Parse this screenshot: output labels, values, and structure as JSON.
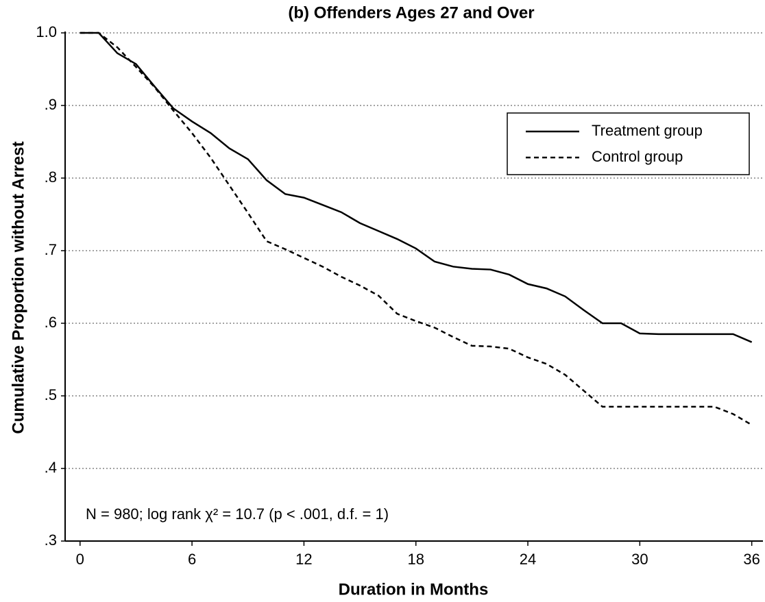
{
  "chart_data": {
    "type": "line",
    "title": "(b) Offenders Ages 27 and Over",
    "xlabel": "Duration in Months",
    "ylabel": "Cumulative Proportion without Arrest",
    "annotation": "N = 980; log rank χ² = 10.7 (p < .001, d.f. = 1)",
    "x": [
      0,
      1,
      2,
      3,
      4,
      5,
      6,
      7,
      8,
      9,
      10,
      11,
      12,
      13,
      14,
      15,
      16,
      17,
      18,
      19,
      20,
      21,
      22,
      23,
      24,
      25,
      26,
      27,
      28,
      29,
      30,
      31,
      32,
      33,
      34,
      35,
      36
    ],
    "series": [
      {
        "name": "Treatment group",
        "color": "#000000",
        "dash": false,
        "values": [
          1.0,
          1.0,
          0.972,
          0.957,
          0.926,
          0.896,
          0.878,
          0.862,
          0.841,
          0.826,
          0.797,
          0.778,
          0.773,
          0.763,
          0.753,
          0.738,
          0.727,
          0.716,
          0.703,
          0.685,
          0.678,
          0.675,
          0.674,
          0.667,
          0.654,
          0.648,
          0.637,
          0.618,
          0.6,
          0.6,
          0.586,
          0.585,
          0.585,
          0.585,
          0.585,
          0.585,
          0.574
        ]
      },
      {
        "name": "Control group",
        "color": "#000000",
        "dash": true,
        "values": [
          1.0,
          1.0,
          0.98,
          0.953,
          0.925,
          0.893,
          0.862,
          0.828,
          0.79,
          0.752,
          0.713,
          0.702,
          0.69,
          0.678,
          0.664,
          0.652,
          0.638,
          0.613,
          0.603,
          0.594,
          0.581,
          0.569,
          0.568,
          0.565,
          0.553,
          0.544,
          0.529,
          0.507,
          0.485,
          0.485,
          0.485,
          0.485,
          0.485,
          0.485,
          0.485,
          0.475,
          0.46
        ]
      }
    ],
    "xlim": [
      -0.8,
      36.6
    ],
    "xticks": [
      0,
      6,
      12,
      18,
      24,
      30,
      36
    ],
    "ylim": [
      0.3,
      1.0
    ],
    "yticks": [
      {
        "value": 0.3,
        "label": ".3"
      },
      {
        "value": 0.4,
        "label": ".4"
      },
      {
        "value": 0.5,
        "label": ".5"
      },
      {
        "value": 0.6,
        "label": ".6"
      },
      {
        "value": 0.7,
        "label": ".7"
      },
      {
        "value": 0.8,
        "label": ".8"
      },
      {
        "value": 0.9,
        "label": ".9"
      },
      {
        "value": 1.0,
        "label": "1.0"
      }
    ],
    "grid": true,
    "legend": "upper right"
  }
}
